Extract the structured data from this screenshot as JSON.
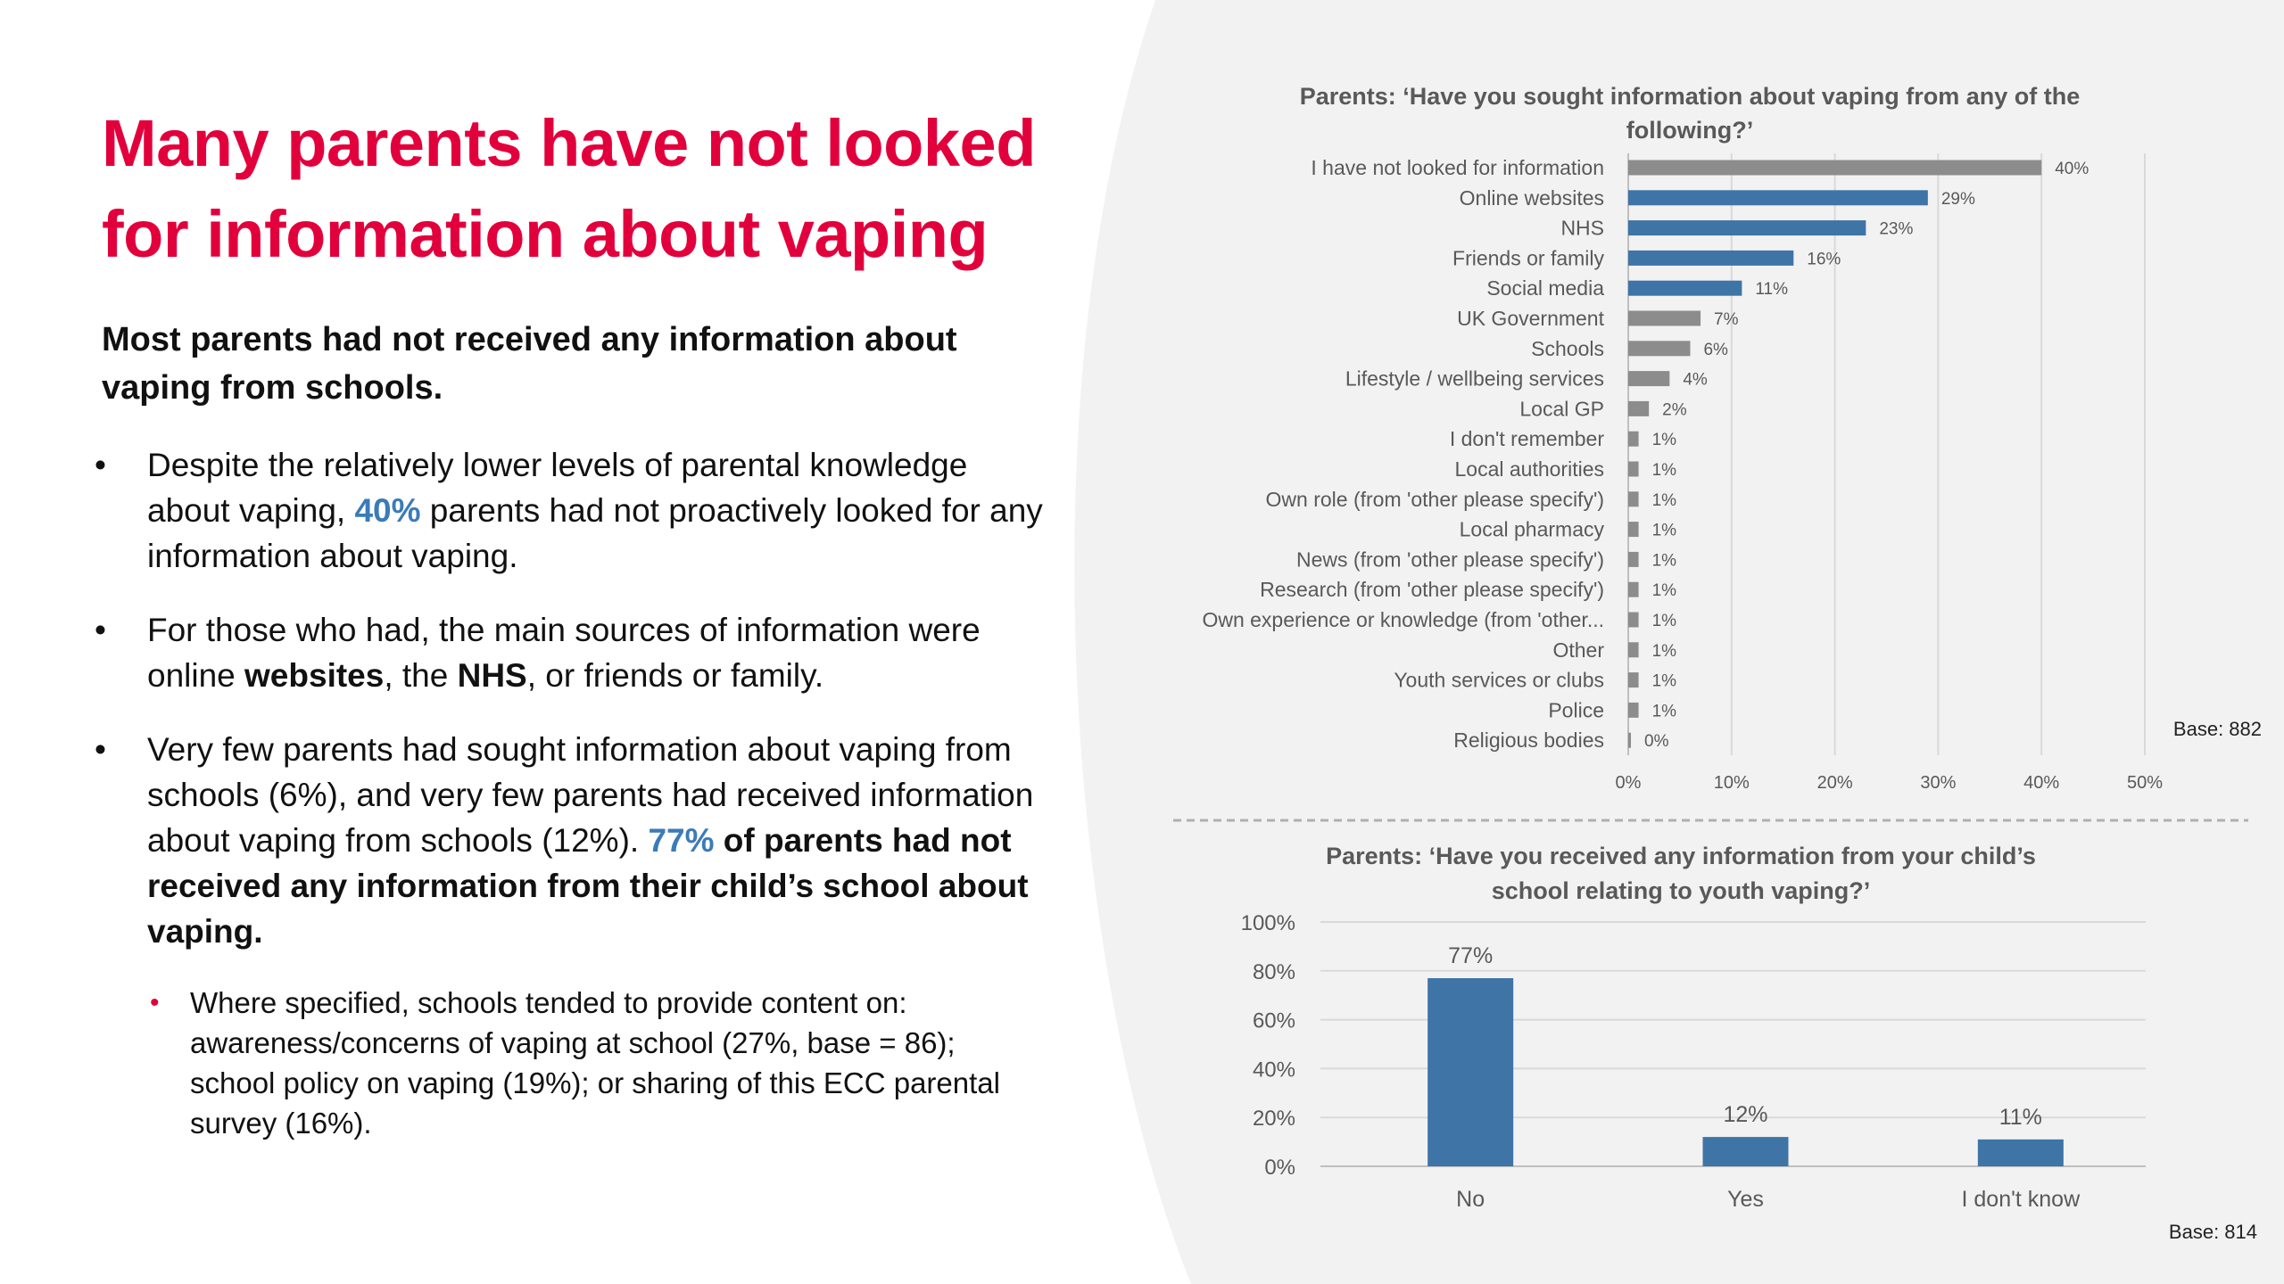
{
  "slide": {
    "title_line1": "Many parents have not looked",
    "title_line2": "for information about vaping",
    "subtitle": "Most parents had not received any information about vaping from schools.",
    "bullet1": {
      "a": "Despite the relatively lower levels of parental knowledge about vaping, ",
      "hl": "40%",
      "b": " parents had not proactively looked for any information about vaping."
    },
    "bullet2": {
      "a": "For those who had, the main sources of information were online ",
      "b1": "websites",
      "b": ", the ",
      "b2": "NHS",
      "c": ", or friends or family."
    },
    "bullet3": {
      "a": "Very few parents had sought information about vaping from schools (6%), and very few parents had received information about vaping from schools (12%). ",
      "hl": "77%",
      "b": " of parents had not received any information from their child’s school about vaping."
    },
    "sub_bullet": "Where specified, schools tended to provide content on: awareness/concerns of vaping at school (27%, base = 86); school policy on vaping (19%); or sharing of this ECC parental survey (16%).",
    "colors": {
      "accent": "#e2003c",
      "blue": "#3b7bb8",
      "bar_blue": "#3f74a6",
      "bar_grey": "#8c8c8c"
    }
  },
  "chart_data": [
    {
      "type": "bar",
      "orientation": "horizontal",
      "title_line1": "Parents: ‘Have you sought information about vaping from any of the",
      "title_line2": "following?’",
      "categories": [
        "I have not looked for information",
        "Online websites",
        "NHS",
        "Friends or family",
        "Social media",
        "UK Government",
        "Schools",
        "Lifestyle / wellbeing services",
        "Local GP",
        "I don't remember",
        "Local authorities",
        "Own role (from 'other please specify')",
        "Local pharmacy",
        "News (from 'other please specify')",
        "Research (from 'other please specify')",
        "Own experience or knowledge (from 'other...",
        "Other",
        "Youth services or clubs",
        "Police",
        "Religious bodies"
      ],
      "values": [
        40,
        29,
        23,
        16,
        11,
        7,
        6,
        4,
        2,
        1,
        1,
        1,
        1,
        1,
        1,
        1,
        1,
        1,
        1,
        0
      ],
      "data_labels": [
        "40%",
        "29%",
        "23%",
        "16%",
        "11%",
        "7%",
        "6%",
        "4%",
        "2%",
        "1%",
        "1%",
        "1%",
        "1%",
        "1%",
        "1%",
        "1%",
        "1%",
        "1%",
        "1%",
        "0%"
      ],
      "highlight": [
        false,
        true,
        true,
        true,
        true,
        false,
        false,
        false,
        false,
        false,
        false,
        false,
        false,
        false,
        false,
        false,
        false,
        false,
        false,
        false
      ],
      "xlim": [
        0,
        50
      ],
      "ticks": [
        "0%",
        "10%",
        "20%",
        "30%",
        "40%",
        "50%"
      ],
      "grid": true,
      "base": "Base: 882"
    },
    {
      "type": "bar",
      "orientation": "vertical",
      "title_line1": "Parents: ‘Have you received any information from your child’s",
      "title_line2": "school relating to youth vaping?’",
      "categories": [
        "No",
        "Yes",
        "I don't know"
      ],
      "values": [
        77,
        12,
        11
      ],
      "data_labels": [
        "77%",
        "12%",
        "11%"
      ],
      "ylim": [
        0,
        100
      ],
      "ticks": [
        "0%",
        "20%",
        "40%",
        "60%",
        "80%",
        "100%"
      ],
      "grid": true,
      "base": "Base: 814"
    }
  ]
}
